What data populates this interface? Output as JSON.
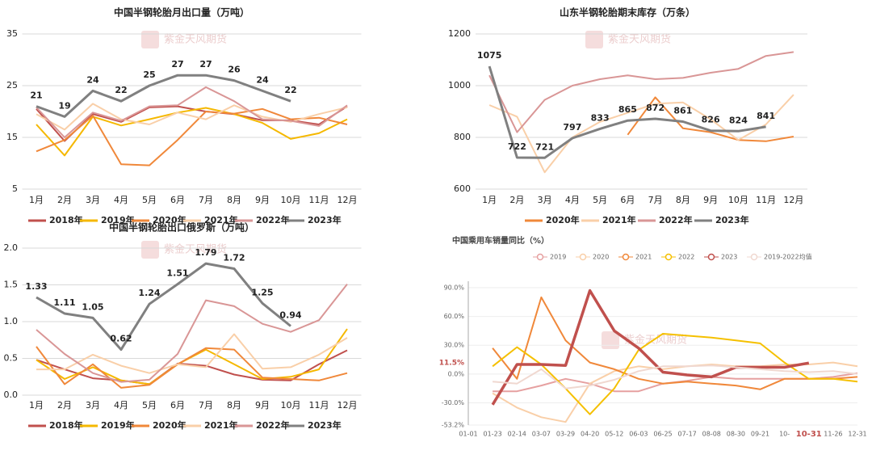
{
  "watermark": "紫金天风期货",
  "chart_data": [
    {
      "type": "line",
      "title": "中国半钢轮胎月出口量（万吨）",
      "categories": [
        "1月",
        "2月",
        "3月",
        "4月",
        "5月",
        "6月",
        "7月",
        "8月",
        "9月",
        "10月",
        "11月",
        "12月"
      ],
      "ylim": [
        5,
        35
      ],
      "yticks": [
        5,
        15,
        25,
        35
      ],
      "grid": true,
      "legend": "bottom",
      "series": [
        {
          "name": "2018年",
          "color": "#c0504d",
          "values": [
            20.5,
            14.3,
            19.5,
            18.0,
            20.8,
            21.0,
            20.0,
            19.5,
            18.3,
            18.3,
            17.5,
            21.0
          ]
        },
        {
          "name": "2019年",
          "color": "#f5b800",
          "values": [
            17.5,
            11.5,
            19.0,
            17.3,
            18.5,
            19.8,
            20.7,
            19.5,
            17.8,
            14.7,
            15.8,
            18.5
          ]
        },
        {
          "name": "2020年",
          "color": "#f0883a",
          "values": [
            12.3,
            14.5,
            19.2,
            9.8,
            9.6,
            14.5,
            20.0,
            19.6,
            20.5,
            18.5,
            18.8,
            17.5
          ]
        },
        {
          "name": "2021年",
          "color": "#f9cfa8",
          "values": [
            19.5,
            16.5,
            21.5,
            18.5,
            17.5,
            19.8,
            18.5,
            21.2,
            19.0,
            18.0,
            19.5,
            20.8
          ]
        },
        {
          "name": "2022年",
          "color": "#d99696",
          "values": [
            20.8,
            15.0,
            19.8,
            18.2,
            21.0,
            21.2,
            24.7,
            22.0,
            18.5,
            18.2,
            17.2,
            21.2
          ]
        },
        {
          "name": "2023年",
          "color": "#808080",
          "data_labels": true,
          "values": [
            21,
            19,
            24,
            22,
            25,
            27,
            27,
            26,
            24,
            22,
            null,
            null
          ]
        }
      ]
    },
    {
      "type": "line",
      "title": "山东半钢轮胎期末库存（万条）",
      "categories": [
        "1月",
        "2月",
        "3月",
        "4月",
        "5月",
        "6月",
        "7月",
        "8月",
        "9月",
        "10月",
        "11月",
        "12月"
      ],
      "ylim": [
        600,
        1200
      ],
      "yticks": [
        600,
        800,
        1000,
        1200
      ],
      "grid": true,
      "legend": "bottom",
      "series": [
        {
          "name": "2020年",
          "color": "#f0883a",
          "values": [
            null,
            null,
            null,
            null,
            null,
            810,
            955,
            835,
            820,
            790,
            785,
            803
          ]
        },
        {
          "name": "2021年",
          "color": "#f9cfa8",
          "values": [
            925,
            880,
            665,
            800,
            860,
            895,
            930,
            935,
            870,
            790,
            850,
            965
          ]
        },
        {
          "name": "2022年",
          "color": "#d99696",
          "values": [
            1040,
            820,
            945,
            1000,
            1025,
            1040,
            1025,
            1030,
            1050,
            1065,
            1115,
            1130
          ]
        },
        {
          "name": "2023年",
          "color": "#808080",
          "data_labels": true,
          "values": [
            1075,
            722,
            721,
            797,
            833,
            865,
            872,
            861,
            826,
            824,
            841,
            null
          ]
        }
      ]
    },
    {
      "type": "line",
      "title": "中国半钢轮胎出口俄罗斯（万吨）",
      "categories": [
        "1月",
        "2月",
        "3月",
        "4月",
        "5月",
        "6月",
        "7月",
        "8月",
        "9月",
        "10月",
        "11月",
        "12月"
      ],
      "ylim": [
        0,
        2
      ],
      "yticks": [
        {
          "value": 0,
          "label": "0.0"
        },
        {
          "value": 0.5,
          "label": "0.5"
        },
        {
          "value": 1,
          "label": "1.0"
        },
        {
          "value": 1.5,
          "label": "1.5"
        },
        {
          "value": 2,
          "label": "2.0"
        }
      ],
      "grid": true,
      "legend": "bottom",
      "series": [
        {
          "name": "2018年",
          "color": "#c0504d",
          "values": [
            0.48,
            0.35,
            0.23,
            0.2,
            0.15,
            0.43,
            0.4,
            0.28,
            0.21,
            0.2,
            0.42,
            0.61
          ]
        },
        {
          "name": "2019年",
          "color": "#f5b800",
          "values": [
            0.48,
            0.22,
            0.38,
            0.2,
            0.15,
            0.42,
            0.62,
            0.42,
            0.22,
            0.25,
            0.35,
            0.9
          ]
        },
        {
          "name": "2020年",
          "color": "#f0883a",
          "values": [
            0.66,
            0.15,
            0.42,
            0.1,
            0.14,
            0.42,
            0.64,
            0.62,
            0.24,
            0.22,
            0.2,
            0.3
          ]
        },
        {
          "name": "2021年",
          "color": "#f9cfa8",
          "values": [
            0.35,
            0.35,
            0.55,
            0.4,
            0.3,
            0.42,
            0.38,
            0.83,
            0.36,
            0.38,
            0.55,
            0.78
          ]
        },
        {
          "name": "2022年",
          "color": "#d99696",
          "values": [
            0.89,
            0.56,
            0.3,
            0.18,
            0.21,
            0.56,
            1.29,
            1.21,
            0.97,
            0.86,
            1.02,
            1.51
          ]
        },
        {
          "name": "2023年",
          "color": "#808080",
          "data_labels": true,
          "values": [
            1.33,
            1.11,
            1.05,
            0.62,
            1.24,
            1.51,
            1.79,
            1.72,
            1.25,
            0.94,
            null,
            null
          ]
        }
      ]
    },
    {
      "type": "line",
      "title": "中国乘用车销量同比（%）",
      "categories": [
        "01-01",
        "01-23",
        "02-14",
        "03-07",
        "03-29",
        "04-20",
        "05-12",
        "06-03",
        "06-25",
        "07-17",
        "08-08",
        "08-30",
        "09-21",
        "10-",
        "10-31",
        "11-26",
        "12-31"
      ],
      "ylim": [
        -53.2,
        90
      ],
      "yticks": [
        {
          "value": -53.2,
          "label": "-53.2%"
        },
        {
          "value": -30,
          "label": "-30.0%"
        },
        {
          "value": 0,
          "label": "0.0%"
        },
        {
          "value": 30,
          "label": "30.0%"
        },
        {
          "value": 60,
          "label": "60.0%"
        },
        {
          "value": 90,
          "label": "90.0%"
        }
      ],
      "grid": true,
      "legend": "top",
      "highlight_category_index": 14,
      "annotations": [
        {
          "text": "11.5%",
          "y": 11.5
        }
      ],
      "series": [
        {
          "name": "2019",
          "color": "#e6a0a0",
          "values": [
            null,
            -18,
            -18,
            -12,
            -5,
            -10,
            -18,
            -18,
            -10,
            -7,
            -3,
            -5,
            -5,
            -5,
            -5,
            -3,
            1
          ]
        },
        {
          "name": "2020",
          "color": "#f9cfa8",
          "values": [
            null,
            -20,
            -35,
            -45,
            -50,
            -10,
            3,
            8,
            5,
            8,
            10,
            8,
            8,
            10,
            10,
            12,
            8
          ]
        },
        {
          "name": "2021",
          "color": "#f0883a",
          "values": [
            null,
            27,
            -5,
            80,
            35,
            12,
            5,
            -5,
            -10,
            -8,
            -10,
            -12,
            -16,
            -5,
            -5,
            -5,
            -3
          ]
        },
        {
          "name": "2022",
          "color": "#f5c000",
          "values": [
            null,
            8,
            28,
            10,
            -15,
            -42,
            -15,
            25,
            42,
            40,
            38,
            35,
            32,
            12,
            -5,
            -5,
            -8
          ]
        },
        {
          "name": "2023",
          "color": "#c0504d",
          "width": 3.5,
          "values": [
            null,
            -32,
            10,
            10,
            9,
            87,
            45,
            27,
            2,
            -1,
            -3,
            7,
            7,
            7,
            11.5,
            null,
            null
          ]
        },
        {
          "name": "2019-2022均值",
          "color": "#f0d8d0",
          "values": [
            null,
            -8,
            -10,
            5,
            -15,
            -12,
            -6,
            3,
            8,
            8,
            9,
            7,
            5,
            3,
            2,
            3,
            0
          ]
        }
      ]
    }
  ]
}
